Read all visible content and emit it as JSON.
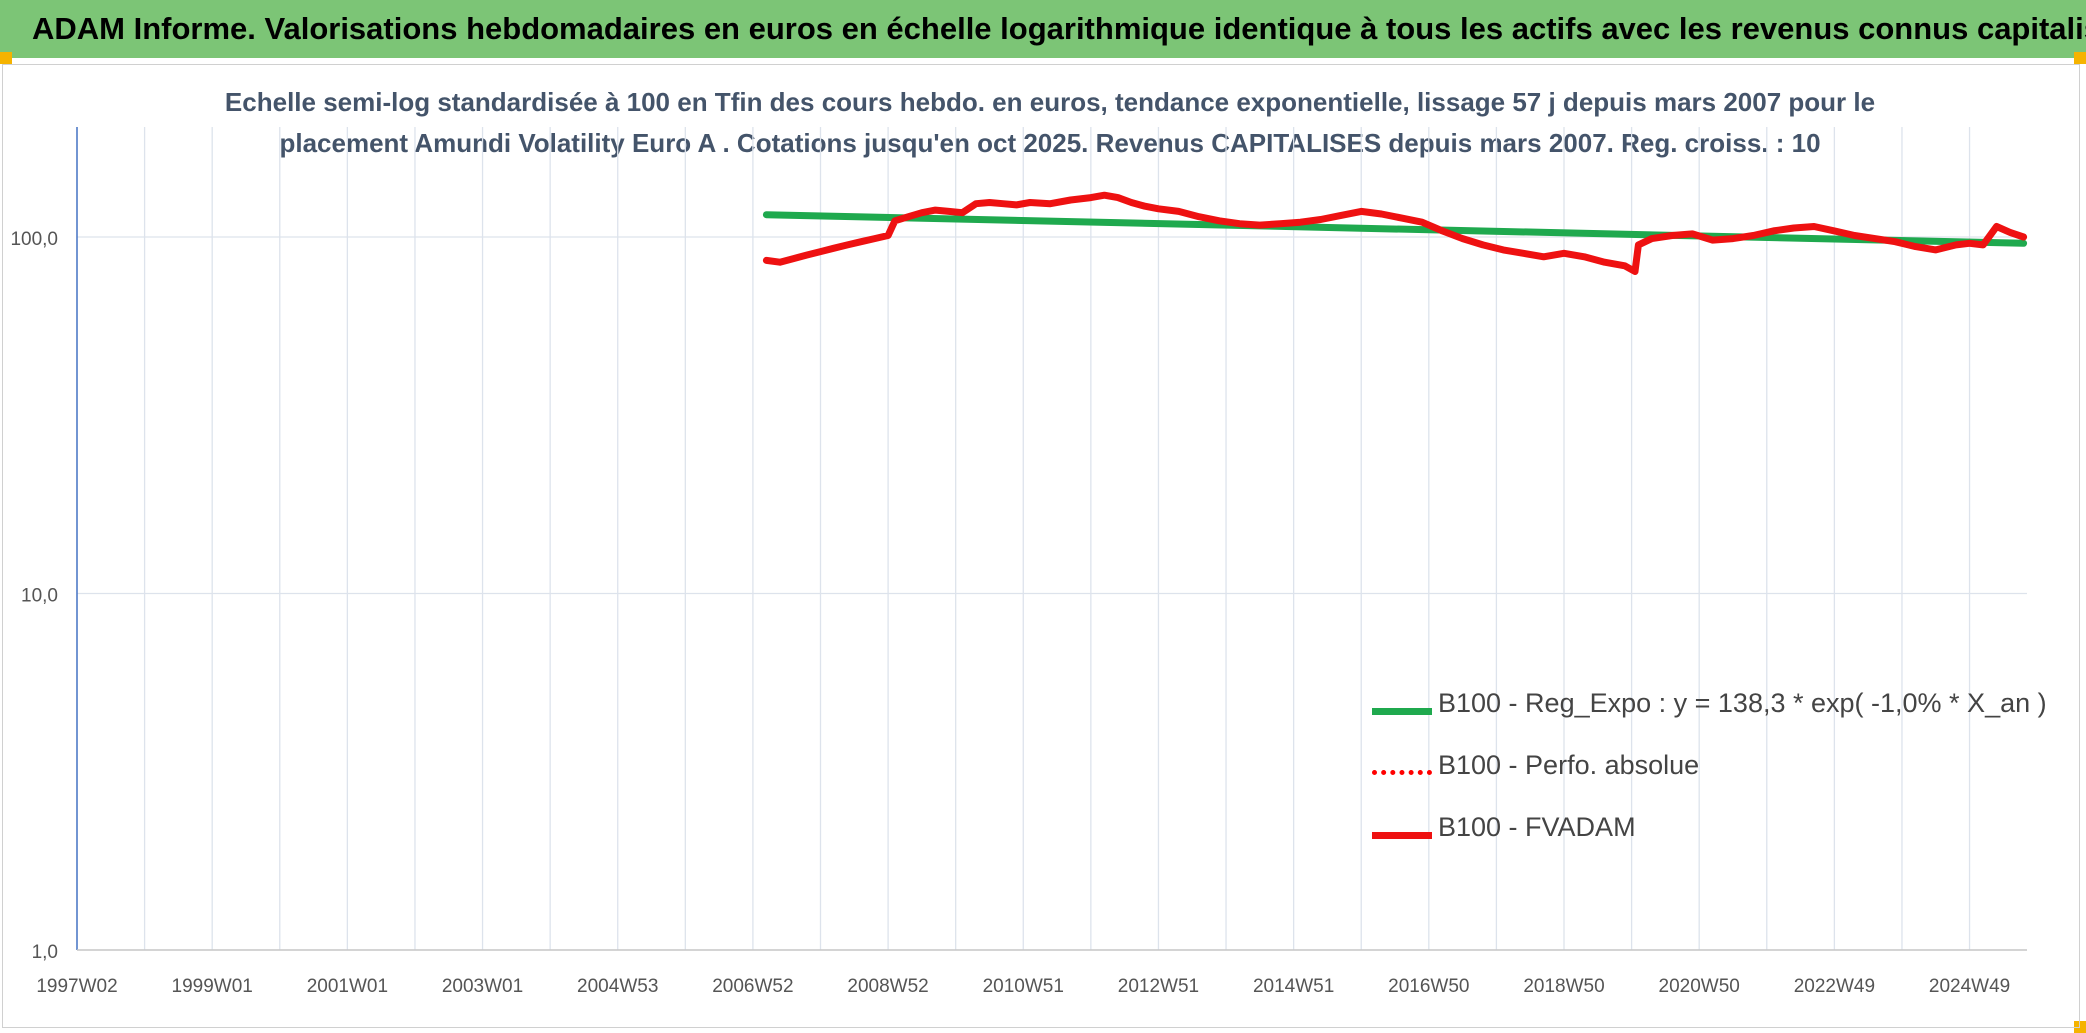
{
  "header": {
    "title": "ADAM Informe. Valorisations hebdomadaires en euros en échelle logarithmique identique à tous les actifs avec les revenus connus capitalisés"
  },
  "chart_data": {
    "type": "line",
    "title_line1": "Echelle semi-log standardisée à 100 en Tfin des cours hebdo. en euros, tendance exponentielle, lissage 57 j depuis mars 2007 pour le",
    "title_line2": "placement Amundi Volatility Euro A . Cotations jusqu'en oct 2025. Revenus CAPITALISES depuis mars 2007. Reg. croiss. : 10",
    "y_scale": "log",
    "ylim": [
      1,
      200
    ],
    "y_ticks": [
      {
        "value": 1,
        "label": "1,0"
      },
      {
        "value": 10,
        "label": "10,0"
      },
      {
        "value": 100,
        "label": "100,0"
      }
    ],
    "xlim": [
      1997.0,
      2025.85
    ],
    "x_ticks": [
      {
        "value": 1997.0,
        "label": "1997W02"
      },
      {
        "value": 1999.0,
        "label": "1999W01"
      },
      {
        "value": 2001.0,
        "label": "2001W01"
      },
      {
        "value": 2003.0,
        "label": "2003W01"
      },
      {
        "value": 2005.0,
        "label": "2004W53"
      },
      {
        "value": 2007.0,
        "label": "2006W52"
      },
      {
        "value": 2009.0,
        "label": "2008W52"
      },
      {
        "value": 2011.0,
        "label": "2010W51"
      },
      {
        "value": 2013.0,
        "label": "2012W51"
      },
      {
        "value": 2015.0,
        "label": "2014W51"
      },
      {
        "value": 2017.0,
        "label": "2016W50"
      },
      {
        "value": 2019.0,
        "label": "2018W50"
      },
      {
        "value": 2021.0,
        "label": "2020W50"
      },
      {
        "value": 2023.0,
        "label": "2022W49"
      },
      {
        "value": 2025.0,
        "label": "2024W49"
      }
    ],
    "minor_x_ticks": [
      1998.0,
      2000.0,
      2002.0,
      2004.0,
      2006.0,
      2008.0,
      2010.0,
      2012.0,
      2014.0,
      2016.0,
      2018.0,
      2020.0,
      2022.0,
      2024.0
    ],
    "legend_position": "lower-right",
    "series": [
      {
        "name": "B100 - Reg_Expo : y = 138,3 * exp( -1,0% *  X_an )",
        "color": "#1fa94e",
        "style": "solid",
        "x": [
          2007.2,
          2025.8
        ],
        "y": [
          115.5,
          96.0
        ]
      },
      {
        "name": "B100 - Perfo. absolue",
        "color": "#ff0000",
        "style": "dotted",
        "x": [],
        "y": []
      },
      {
        "name": "B100 - FVADAM",
        "color": "#ee1111",
        "style": "solid",
        "x": [
          2007.2,
          2007.4,
          2007.6,
          2007.8,
          2008.0,
          2008.2,
          2008.4,
          2008.6,
          2008.8,
          2009.0,
          2009.1,
          2009.3,
          2009.5,
          2009.7,
          2009.9,
          2010.1,
          2010.3,
          2010.5,
          2010.7,
          2010.9,
          2011.1,
          2011.4,
          2011.7,
          2012.0,
          2012.2,
          2012.4,
          2012.6,
          2012.8,
          2013.0,
          2013.3,
          2013.6,
          2013.9,
          2014.2,
          2014.5,
          2014.8,
          2015.1,
          2015.4,
          2015.7,
          2016.0,
          2016.3,
          2016.6,
          2016.9,
          2017.2,
          2017.5,
          2017.8,
          2018.1,
          2018.4,
          2018.7,
          2019.0,
          2019.3,
          2019.6,
          2019.9,
          2020.05,
          2020.1,
          2020.3,
          2020.6,
          2020.9,
          2021.2,
          2021.5,
          2021.8,
          2022.1,
          2022.4,
          2022.7,
          2023.0,
          2023.3,
          2023.6,
          2023.9,
          2024.2,
          2024.5,
          2024.8,
          2025.0,
          2025.2,
          2025.4,
          2025.6,
          2025.8
        ],
        "y": [
          86,
          85,
          87,
          89,
          91,
          93,
          95,
          97,
          99,
          101,
          111,
          114,
          117,
          119,
          118,
          117,
          124,
          125,
          124,
          123,
          125,
          124,
          127,
          129,
          131,
          129,
          125,
          122,
          120,
          118,
          114,
          111,
          109,
          108,
          109,
          110,
          112,
          115,
          118,
          116,
          113,
          110,
          104,
          99,
          95,
          92,
          90,
          88,
          90,
          88,
          85,
          83,
          80,
          95,
          99,
          101,
          102,
          98,
          99,
          101,
          104,
          106,
          107,
          104,
          101,
          99,
          97,
          94,
          92,
          95,
          96,
          95,
          107,
          103,
          100
        ]
      }
    ]
  }
}
